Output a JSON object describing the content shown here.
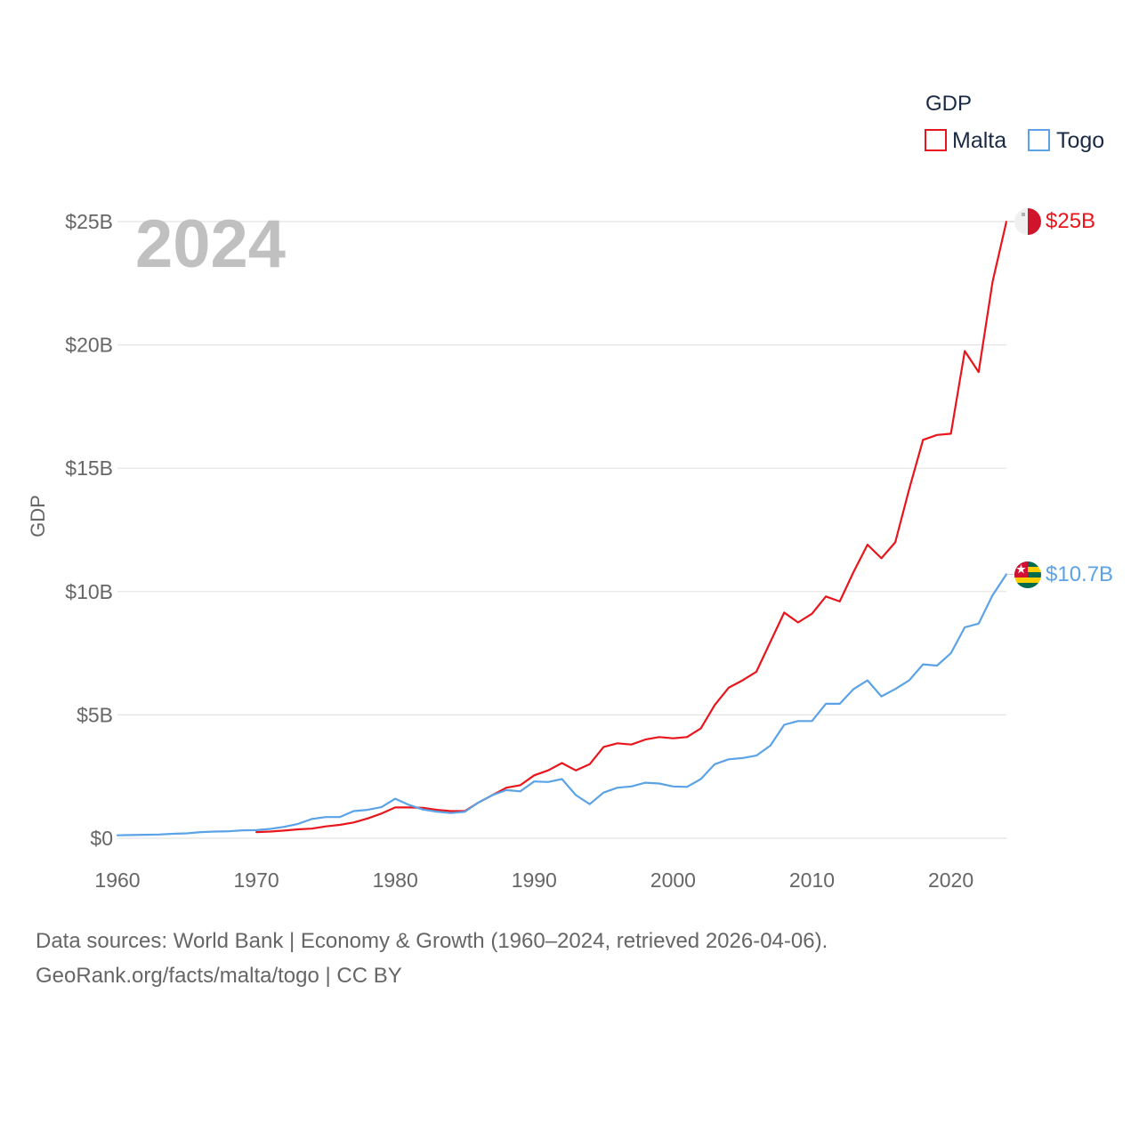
{
  "chart_data": {
    "type": "line",
    "title": "GDP",
    "year_label": "2024",
    "ylabel": "GDP",
    "xlim": [
      1960,
      2024
    ],
    "ylim": [
      0,
      25
    ],
    "x_ticks": [
      1960,
      1970,
      1980,
      1990,
      2000,
      2010,
      2020
    ],
    "x_tick_labels": [
      "1960",
      "1970",
      "1980",
      "1990",
      "2000",
      "2010",
      "2020"
    ],
    "y_ticks": [
      0,
      5,
      10,
      15,
      20,
      25
    ],
    "y_tick_labels": [
      "$0",
      "$5B",
      "$10B",
      "$15B",
      "$20B",
      "$25B"
    ],
    "legend_title": "GDP",
    "legend_position": "top-right",
    "unit": "billion USD",
    "series": [
      {
        "name": "Malta",
        "color": "#e8161c",
        "end_label": "$25B",
        "flag": "malta-flag",
        "x": [
          1970,
          1971,
          1972,
          1973,
          1974,
          1975,
          1976,
          1977,
          1978,
          1979,
          1980,
          1981,
          1982,
          1983,
          1984,
          1985,
          1986,
          1987,
          1988,
          1989,
          1990,
          1991,
          1992,
          1993,
          1994,
          1995,
          1996,
          1997,
          1998,
          1999,
          2000,
          2001,
          2002,
          2003,
          2004,
          2005,
          2006,
          2007,
          2008,
          2009,
          2010,
          2011,
          2012,
          2013,
          2014,
          2015,
          2016,
          2017,
          2018,
          2019,
          2020,
          2021,
          2022,
          2023,
          2024
        ],
        "values": [
          0.25,
          0.27,
          0.31,
          0.36,
          0.39,
          0.48,
          0.54,
          0.64,
          0.8,
          1.0,
          1.25,
          1.25,
          1.23,
          1.15,
          1.1,
          1.1,
          1.45,
          1.75,
          2.05,
          2.15,
          2.55,
          2.75,
          3.05,
          2.75,
          3.0,
          3.7,
          3.85,
          3.8,
          4.0,
          4.1,
          4.05,
          4.1,
          4.45,
          5.4,
          6.1,
          6.4,
          6.75,
          7.95,
          9.15,
          8.75,
          9.1,
          9.8,
          9.6,
          10.8,
          11.9,
          11.35,
          12.0,
          14.15,
          16.15,
          16.35,
          16.4,
          19.75,
          18.9,
          22.55,
          25.0
        ]
      },
      {
        "name": "Togo",
        "color": "#5ba3e6",
        "end_label": "$10.7B",
        "flag": "togo-flag",
        "x": [
          1960,
          1961,
          1962,
          1963,
          1964,
          1965,
          1966,
          1967,
          1968,
          1969,
          1970,
          1971,
          1972,
          1973,
          1974,
          1975,
          1976,
          1977,
          1978,
          1979,
          1980,
          1981,
          1982,
          1983,
          1984,
          1985,
          1986,
          1987,
          1988,
          1989,
          1990,
          1991,
          1992,
          1993,
          1994,
          1995,
          1996,
          1997,
          1998,
          1999,
          2000,
          2001,
          2002,
          2003,
          2004,
          2005,
          2006,
          2007,
          2008,
          2009,
          2010,
          2011,
          2012,
          2013,
          2014,
          2015,
          2016,
          2017,
          2018,
          2019,
          2020,
          2021,
          2022,
          2023,
          2024
        ],
        "values": [
          0.12,
          0.13,
          0.14,
          0.15,
          0.18,
          0.2,
          0.25,
          0.27,
          0.28,
          0.32,
          0.33,
          0.38,
          0.46,
          0.58,
          0.78,
          0.86,
          0.86,
          1.1,
          1.15,
          1.26,
          1.6,
          1.35,
          1.16,
          1.08,
          1.02,
          1.07,
          1.45,
          1.75,
          1.95,
          1.9,
          2.3,
          2.28,
          2.4,
          1.75,
          1.38,
          1.85,
          2.05,
          2.1,
          2.25,
          2.22,
          2.1,
          2.08,
          2.4,
          3.0,
          3.2,
          3.25,
          3.35,
          3.75,
          4.6,
          4.75,
          4.75,
          5.45,
          5.45,
          6.05,
          6.4,
          5.75,
          6.05,
          6.4,
          7.05,
          7.0,
          7.5,
          8.55,
          8.7,
          9.85,
          10.7
        ]
      }
    ]
  },
  "footer": {
    "line1": "Data sources: World Bank | Economy & Growth (1960–2024, retrieved 2026-04-06).",
    "line2": "GeoRank.org/facts/malta/togo | CC BY"
  }
}
